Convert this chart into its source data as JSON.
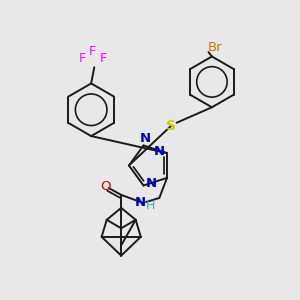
{
  "background_color": "#e8e8e8",
  "line_color": "#1a1a1a",
  "line_width": 1.4,
  "atom_colors": {
    "Br": "#c87800",
    "F": "#ff00ff",
    "N": "#0000cc",
    "O": "#cc0000",
    "S": "#cccc00",
    "NH": "#44aaaa",
    "C": "#1a1a1a"
  },
  "figsize": [
    3.0,
    3.0
  ],
  "dpi": 100,
  "xlim": [
    0.0,
    1.0
  ],
  "ylim": [
    0.0,
    1.0
  ]
}
